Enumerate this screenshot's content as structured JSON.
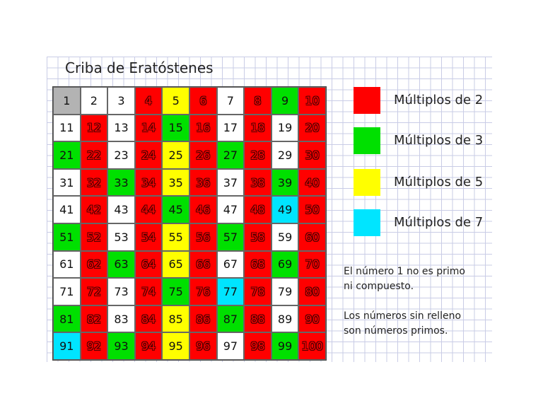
{
  "title": "Criba de Eratóstenes",
  "colors": {
    "mult2": "#ff0000",
    "mult3": "#00e000",
    "mult5": "#ffff00",
    "mult7": "#00e5ff",
    "one": "#b3b3b3",
    "prime": "#ffffff"
  },
  "legend": [
    {
      "label": "Múltiplos de 2",
      "color": "#ff0000"
    },
    {
      "label": "Múltiplos de 3",
      "color": "#00e000"
    },
    {
      "label": "Múltiplos de 5",
      "color": "#ffff00"
    },
    {
      "label": "Múltiplos de 7",
      "color": "#00e5ff"
    }
  ],
  "notes": {
    "note1_line1": "El número 1 no es primo",
    "note1_line2": "ni compuesto.",
    "note2_line1": "Los números sin relleno",
    "note2_line2": "son números primos."
  },
  "grid": {
    "numbers": [
      1,
      2,
      3,
      4,
      5,
      6,
      7,
      8,
      9,
      10,
      11,
      12,
      13,
      14,
      15,
      16,
      17,
      18,
      19,
      20,
      21,
      22,
      23,
      24,
      25,
      26,
      27,
      28,
      29,
      30,
      31,
      32,
      33,
      34,
      35,
      36,
      37,
      38,
      39,
      40,
      41,
      42,
      43,
      44,
      45,
      46,
      47,
      48,
      49,
      50,
      51,
      52,
      53,
      54,
      55,
      56,
      57,
      58,
      59,
      60,
      61,
      62,
      63,
      64,
      65,
      66,
      67,
      68,
      69,
      70,
      71,
      72,
      73,
      74,
      75,
      76,
      77,
      78,
      79,
      80,
      81,
      82,
      83,
      84,
      85,
      86,
      87,
      88,
      89,
      90,
      91,
      92,
      93,
      94,
      95,
      96,
      97,
      98,
      99,
      100
    ],
    "categories": [
      "one",
      "prime",
      "prime",
      "mult2",
      "mult5",
      "mult2",
      "prime",
      "mult2",
      "mult3",
      "mult2",
      "prime",
      "mult2",
      "prime",
      "mult2",
      "mult3",
      "mult2",
      "prime",
      "mult2",
      "prime",
      "mult2",
      "mult3",
      "mult2",
      "prime",
      "mult2",
      "mult5",
      "mult2",
      "mult3",
      "mult2",
      "prime",
      "mult2",
      "prime",
      "mult2",
      "mult3",
      "mult2",
      "mult5",
      "mult2",
      "prime",
      "mult2",
      "mult3",
      "mult2",
      "prime",
      "mult2",
      "prime",
      "mult2",
      "mult3",
      "mult2",
      "prime",
      "mult2",
      "mult7",
      "mult2",
      "mult3",
      "mult2",
      "prime",
      "mult2",
      "mult5",
      "mult2",
      "mult3",
      "mult2",
      "prime",
      "mult2",
      "prime",
      "mult2",
      "mult3",
      "mult2",
      "mult5",
      "mult2",
      "prime",
      "mult2",
      "mult3",
      "mult2",
      "prime",
      "mult2",
      "prime",
      "mult2",
      "mult3",
      "mult2",
      "mult7",
      "mult2",
      "prime",
      "mult2",
      "mult3",
      "mult2",
      "prime",
      "mult2",
      "mult5",
      "mult2",
      "mult3",
      "mult2",
      "prime",
      "mult2",
      "mult7",
      "mult2",
      "mult3",
      "mult2",
      "mult5",
      "mult2",
      "prime",
      "mult2",
      "mult3",
      "mult2"
    ]
  }
}
